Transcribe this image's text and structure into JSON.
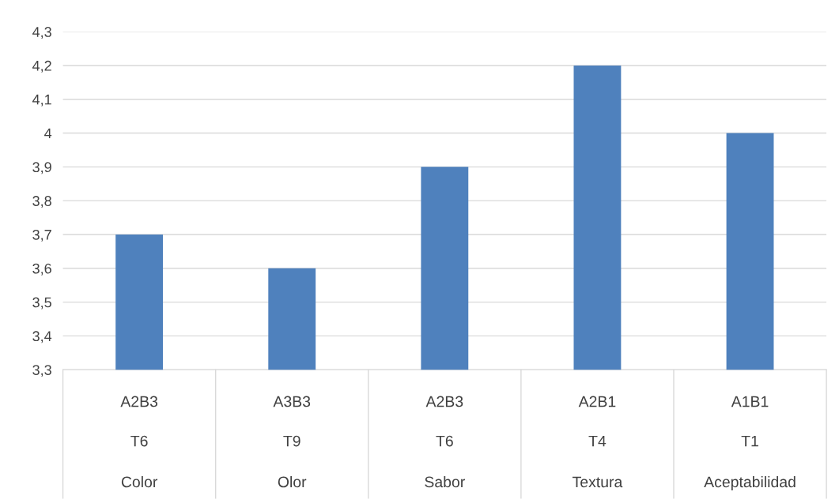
{
  "chart_data": {
    "type": "bar",
    "categories": [
      "A2B3\nT6\nColor",
      "A3B3\nT9\nOlor",
      "A2B3\nT6\nSabor",
      "A2B1\nT4\nTextura",
      "A1B1\nT1\nAceptabilidad"
    ],
    "values": [
      3.7,
      3.6,
      3.9,
      4.2,
      4.0
    ],
    "color": "#4f81bd",
    "ylim": [
      3.3,
      4.3
    ],
    "yticks": [
      {
        "value": 3.3,
        "label": "3,3"
      },
      {
        "value": 3.4,
        "label": "3,4"
      },
      {
        "value": 3.5,
        "label": "3,5"
      },
      {
        "value": 3.6,
        "label": "3,6"
      },
      {
        "value": 3.7,
        "label": "3,7"
      },
      {
        "value": 3.8,
        "label": "3,8"
      },
      {
        "value": 3.9,
        "label": "3,9"
      },
      {
        "value": 4.0,
        "label": "4"
      },
      {
        "value": 4.1,
        "label": "4,1"
      },
      {
        "value": 4.2,
        "label": "4,2"
      },
      {
        "value": 4.3,
        "label": "4,3"
      }
    ],
    "grid": "y"
  }
}
